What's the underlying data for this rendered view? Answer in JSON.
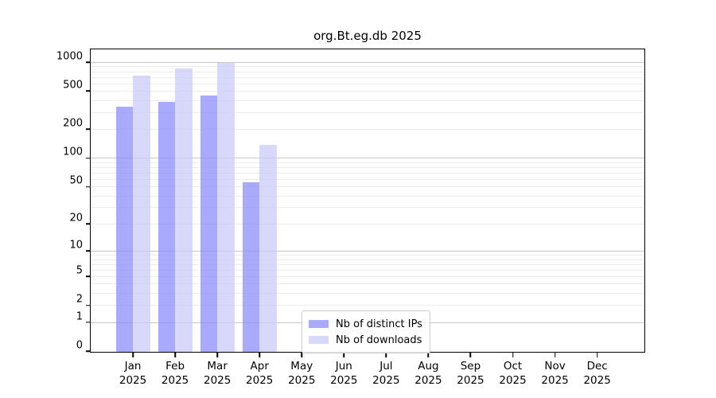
{
  "title": "org.Bt.eg.db 2025",
  "colors": {
    "bar_distinct_ips": "#8989f8",
    "bar_downloads": "#c9c9f8",
    "grid_minor": "#ececec",
    "grid_major": "#c6c6c6",
    "axis": "#000000",
    "legend_border": "#cccccc"
  },
  "chart_data": {
    "type": "bar",
    "title": "org.Bt.eg.db 2025",
    "categories": [
      "Jan",
      "Feb",
      "Mar",
      "Apr",
      "May",
      "Jun",
      "Jul",
      "Aug",
      "Sep",
      "Oct",
      "Nov",
      "Dec"
    ],
    "year_label": "2025",
    "series": [
      {
        "name": "Nb of distinct IPs",
        "color": "#8989f8",
        "values": [
          350,
          390,
          460,
          57,
          null,
          null,
          null,
          null,
          null,
          null,
          null,
          null
        ]
      },
      {
        "name": "Nb of downloads",
        "color": "#c9c9f8",
        "values": [
          730,
          870,
          1000,
          140,
          null,
          null,
          null,
          null,
          null,
          null,
          null,
          null
        ]
      }
    ],
    "xlabel": "",
    "ylabel": "",
    "y_scale": "log1p",
    "y_ticks_labeled": [
      1000,
      500,
      200,
      100,
      50,
      20,
      10,
      5,
      2,
      1,
      0
    ],
    "y_minor_gridlines": [
      2,
      3,
      4,
      5,
      6,
      7,
      8,
      9,
      20,
      30,
      40,
      50,
      60,
      70,
      80,
      90,
      200,
      300,
      400,
      500,
      600,
      700,
      800,
      900
    ],
    "y_major_gridlines": [
      1,
      10,
      100,
      1000
    ],
    "ylim": [
      0,
      1350
    ],
    "grid": true,
    "legend_position": "lower-center"
  }
}
